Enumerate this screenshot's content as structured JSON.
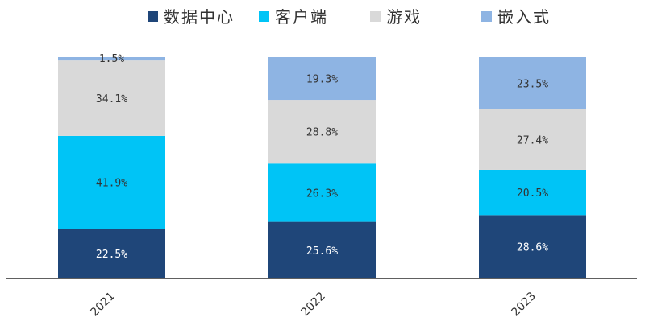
{
  "chart_data": {
    "type": "bar",
    "stacked": true,
    "categories": [
      "2021",
      "2022",
      "2023"
    ],
    "series": [
      {
        "name": "数据中心",
        "color": "#1f4679",
        "label_color": "#ffffff",
        "values": [
          22.5,
          25.6,
          28.6
        ],
        "labels": [
          "22.5%",
          "25.6%",
          "28.6%"
        ]
      },
      {
        "name": "客户端",
        "color": "#00c4f6",
        "label_color": "#333333",
        "values": [
          41.9,
          26.3,
          20.5
        ],
        "labels": [
          "41.9%",
          "26.3%",
          "20.5%"
        ]
      },
      {
        "name": "游戏",
        "color": "#d9d9d9",
        "label_color": "#333333",
        "values": [
          34.1,
          28.8,
          27.4
        ],
        "labels": [
          "34.1%",
          "28.8%",
          "27.4%"
        ]
      },
      {
        "name": "嵌入式",
        "color": "#8eb4e3",
        "label_color": "#333333",
        "values": [
          1.5,
          19.3,
          23.5
        ],
        "labels": [
          "1.5%",
          "19.3%",
          "23.5%"
        ]
      }
    ],
    "ylim": [
      0,
      100
    ],
    "grid": false,
    "legend_position": "top-center"
  }
}
